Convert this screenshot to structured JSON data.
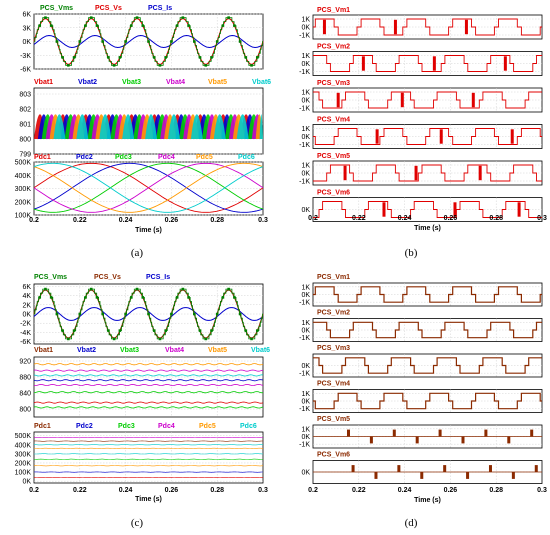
{
  "subfigure_labels": [
    "(a)",
    "(b)",
    "(c)",
    "(d)"
  ],
  "xlabel": "Time (s)",
  "x_ticks": [
    "0.2",
    "0.22",
    "0.24",
    "0.26",
    "0.28",
    "0.3"
  ],
  "xlim": [
    0.2,
    0.3
  ],
  "colors": {
    "vms_a": "#008000",
    "vs_a": "#e00000",
    "is": "#0000cc",
    "vms_c": "#008000",
    "vs_c": "#8b2a00",
    "pcs_b": "#e00000",
    "pcs_d": "#8b2a00",
    "ch1": "#e00000",
    "ch2": "#0000cc",
    "ch3": "#00cc00",
    "ch4": "#cc00cc",
    "ch5": "#ff9900",
    "ch6": "#00cccc"
  },
  "chart_data": [
    {
      "id": "a1",
      "type": "line",
      "legend": [
        "PCS_Vms",
        "PCS_Vs",
        "PCS_Is"
      ],
      "y_ticks": [
        "6K",
        "3K",
        "0K",
        "-3K",
        "-6K"
      ],
      "ylim": [
        -6000,
        6000
      ],
      "series": [
        {
          "name": "PCS_Vms",
          "kind": "stair",
          "amplitude": 5200,
          "freq_hz": 50
        },
        {
          "name": "PCS_Vs",
          "kind": "sine",
          "amplitude": 5000,
          "freq_hz": 50
        },
        {
          "name": "PCS_Is",
          "kind": "sine",
          "amplitude": 1300,
          "freq_hz": 50,
          "phase_deg": -30
        }
      ]
    },
    {
      "id": "a2",
      "type": "area",
      "legend": [
        "Vbat1",
        "Vbat2",
        "Vbat3",
        "Vbat4",
        "Vbat5",
        "Vbat6"
      ],
      "y_ticks": [
        "803",
        "802",
        "801",
        "800",
        "799"
      ],
      "ylim": [
        799,
        803.4
      ],
      "series_note": "Vbat ripple between 800 and 802.6 V"
    },
    {
      "id": "a3",
      "type": "line",
      "legend": [
        "Pdc1",
        "Pdc2",
        "Pdc3",
        "Pdc4",
        "Pdc5",
        "Pdc6"
      ],
      "y_ticks": [
        "500K",
        "400K",
        "300K",
        "200K",
        "100K"
      ],
      "ylim": [
        100000,
        500000
      ],
      "series_note": "Pdc sinusoids 120K to 490K, period 0.1 s, phase shifted by 60 deg"
    },
    {
      "id": "b",
      "type": "line",
      "panels": [
        {
          "name": "PCS_Vm1",
          "y_ticks": [
            "1K",
            "0K",
            "-1K"
          ]
        },
        {
          "name": "PCS_Vm2",
          "y_ticks": [
            "1K",
            "0K",
            "-1K"
          ]
        },
        {
          "name": "PCS_Vm3",
          "y_ticks": [
            "1K",
            "0K",
            "-1K"
          ]
        },
        {
          "name": "PCS_Vm4",
          "y_ticks": [
            "1K",
            "0K",
            "-1K"
          ]
        },
        {
          "name": "PCS_Vm5",
          "y_ticks": [
            "1K",
            "0K",
            "-1K"
          ]
        },
        {
          "name": "PCS_Vm6",
          "y_ticks": [
            "0K"
          ]
        }
      ],
      "ylim": [
        -1500,
        1500
      ]
    },
    {
      "id": "c1",
      "type": "line",
      "legend": [
        "PCS_Vms",
        "PCS_Vs",
        "PCS_Is"
      ],
      "y_ticks": [
        "6K",
        "4K",
        "2K",
        "0K",
        "-2K",
        "-4K",
        "-6K"
      ],
      "ylim": [
        -6500,
        6500
      ]
    },
    {
      "id": "c2",
      "type": "line",
      "legend": [
        "Vbat1",
        "Vbat2",
        "Vbat3",
        "Vbat4",
        "Vbat5",
        "Vbat6"
      ],
      "y_ticks": [
        "920",
        "880",
        "840",
        "800"
      ],
      "ylim": [
        780,
        930
      ],
      "levels": [
        912,
        896,
        884,
        872,
        860,
        842,
        816,
        804
      ]
    },
    {
      "id": "c3",
      "type": "line",
      "legend": [
        "Pdc1",
        "Pdc2",
        "Pdc3",
        "Pdc4",
        "Pdc5",
        "Pdc6"
      ],
      "y_ticks": [
        "500K",
        "400K",
        "300K",
        "200K",
        "100K",
        "0K"
      ],
      "ylim": [
        -20000,
        540000
      ],
      "levels": [
        480000,
        440000,
        400000,
        360000,
        300000,
        240000,
        170000,
        100000,
        40000
      ]
    },
    {
      "id": "d",
      "type": "line",
      "panels": [
        {
          "name": "PCS_Vm1",
          "y_ticks": [
            "1K",
            "0K",
            "-1K"
          ]
        },
        {
          "name": "PCS_Vm2",
          "y_ticks": [
            "1K",
            "0K",
            "-1K"
          ]
        },
        {
          "name": "PCS_Vm3",
          "y_ticks": [
            "0K",
            "-1K"
          ]
        },
        {
          "name": "PCS_Vm4",
          "y_ticks": [
            "1K",
            "0K",
            "-1K"
          ]
        },
        {
          "name": "PCS_Vm5",
          "y_ticks": [
            "1K",
            "0K",
            "-1K"
          ]
        },
        {
          "name": "PCS_Vm6",
          "y_ticks": [
            "0K"
          ]
        }
      ],
      "ylim": [
        -1500,
        1500
      ]
    }
  ]
}
